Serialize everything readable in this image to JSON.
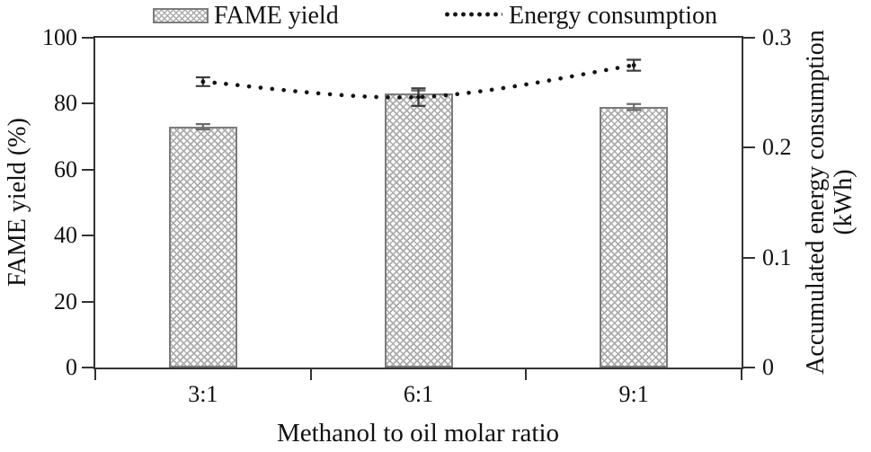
{
  "figure": {
    "legend": {
      "items": [
        "FAME yield",
        "Energy consumption"
      ],
      "position": "top"
    }
  },
  "chart_data": {
    "type": "combo-bar-line",
    "categories": [
      "3:1",
      "6:1",
      "9:1"
    ],
    "series": [
      {
        "name": "FAME yield",
        "type": "bar",
        "axis": "left",
        "pattern": "gray-crosshatch",
        "values": [
          73,
          83,
          79
        ],
        "error_bars": [
          0.8,
          1.0,
          0.9
        ]
      },
      {
        "name": "Energy consumption",
        "type": "line",
        "style": "dotted",
        "axis": "right",
        "values": [
          0.26,
          0.246,
          0.275
        ],
        "error_bars": [
          0.004,
          0.008,
          0.005
        ]
      }
    ],
    "x_axis": {
      "title": "Methanol to oil molar ratio",
      "tick_labels": [
        "3:1",
        "6:1",
        "9:1"
      ]
    },
    "left_axis": {
      "title": "FAME yield (%)",
      "min": 0,
      "max": 100,
      "tick_step": 20,
      "tick_labels": [
        "0",
        "20",
        "40",
        "60",
        "80",
        "100"
      ]
    },
    "right_axis": {
      "title_line1": "Accumulated energy consumption",
      "title_line2": "(kWh)",
      "min": 0,
      "max": 0.3,
      "tick_step": 0.1,
      "tick_labels": [
        "0",
        "0.1",
        "0.2",
        "0.3"
      ]
    },
    "grid": false,
    "colors": {
      "bar_pattern": "#ababab",
      "bar_border": "#7c7c7c",
      "bar_error": "#6b6b6b",
      "line": "#151515",
      "line_error": "#3d3d3d",
      "axis": "#333333",
      "text": "#111111"
    }
  }
}
